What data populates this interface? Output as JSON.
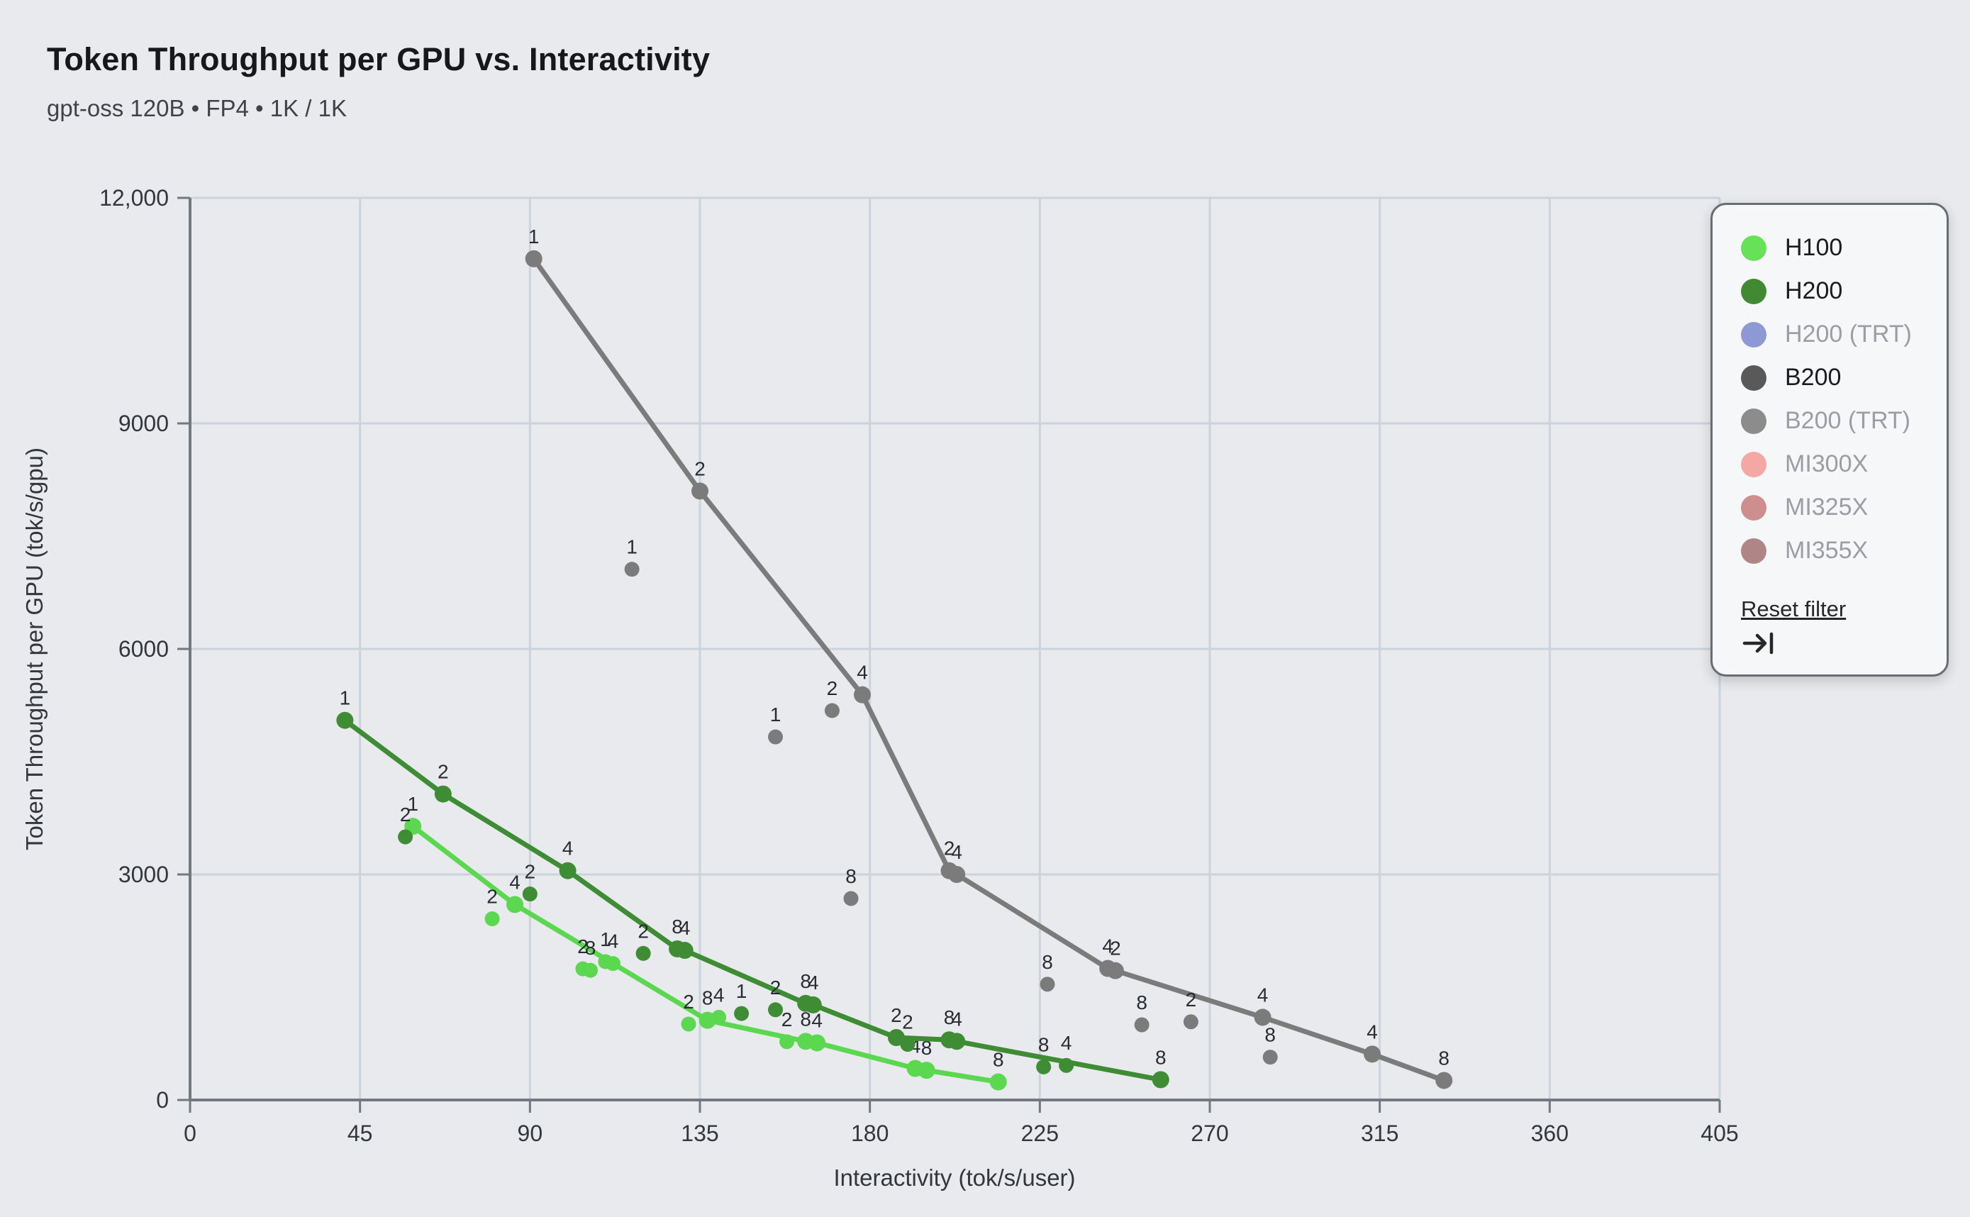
{
  "header": {
    "title": "Token Throughput per GPU vs. Interactivity",
    "subtitle": "gpt-oss 120B • FP4 • 1K / 1K"
  },
  "chart_data": {
    "type": "scatter",
    "title": "Token Throughput per GPU vs. Interactivity",
    "subtitle": "gpt-oss 120B • FP4 • 1K / 1K",
    "xlabel": "Interactivity (tok/s/user)",
    "ylabel": "Token Throughput per GPU (tok/s/gpu)",
    "xlim": [
      0,
      405
    ],
    "ylim": [
      0,
      12000
    ],
    "x_ticks": [
      0,
      45,
      90,
      135,
      180,
      225,
      270,
      315,
      360,
      405
    ],
    "y_ticks": [
      {
        "value": 0,
        "label": "0"
      },
      {
        "value": 3000,
        "label": "3000"
      },
      {
        "value": 6000,
        "label": "6000"
      },
      {
        "value": 9000,
        "label": "9000"
      },
      {
        "value": 12000,
        "label": "12,000"
      }
    ],
    "grid": true,
    "point_labels": "parallelism (1 / 2 / 4 / 8)",
    "series": [
      {
        "name": "H100",
        "color": "#5bd84f",
        "line": [
          [
            59,
            3640,
            "1"
          ],
          [
            86,
            2600,
            "4"
          ],
          [
            137,
            1060,
            "8"
          ],
          [
            163,
            780,
            "8"
          ],
          [
            166,
            760,
            "4"
          ],
          [
            192,
            420,
            "4"
          ],
          [
            195,
            395,
            "8"
          ],
          [
            214,
            240,
            "8"
          ]
        ],
        "scatter": [
          [
            80,
            2410,
            "2"
          ],
          [
            104,
            1745,
            "2"
          ],
          [
            106,
            1725,
            "8"
          ],
          [
            110,
            1840,
            "1"
          ],
          [
            112,
            1815,
            "4"
          ],
          [
            132,
            1010,
            "2"
          ],
          [
            140,
            1100,
            "4"
          ],
          [
            158,
            775,
            "2"
          ]
        ]
      },
      {
        "name": "H200",
        "color": "#3e8c33",
        "line": [
          [
            41,
            5050,
            "1"
          ],
          [
            67,
            4070,
            "2"
          ],
          [
            100,
            3050,
            "4"
          ],
          [
            129,
            2010,
            "8"
          ],
          [
            131,
            1990,
            "4"
          ],
          [
            163,
            1285,
            "8"
          ],
          [
            165,
            1265,
            "4"
          ],
          [
            187,
            830,
            "2"
          ],
          [
            201,
            800,
            "8"
          ],
          [
            203,
            780,
            "4"
          ],
          [
            257,
            270,
            "8"
          ]
        ],
        "scatter": [
          [
            57,
            3500,
            "2"
          ],
          [
            90,
            2740,
            "2"
          ],
          [
            120,
            1950,
            "2"
          ],
          [
            146,
            1150,
            "1"
          ],
          [
            155,
            1200,
            "2"
          ],
          [
            190,
            740,
            "2"
          ],
          [
            226,
            440,
            "8"
          ],
          [
            232,
            460,
            "4"
          ]
        ]
      },
      {
        "name": "B200",
        "color": "#7b7b7b",
        "line": [
          [
            91,
            11190,
            "1"
          ],
          [
            135,
            8100,
            "2"
          ],
          [
            178,
            5390,
            "4"
          ],
          [
            201,
            3050,
            "2"
          ],
          [
            203,
            3000,
            "4"
          ],
          [
            243,
            1750,
            "4"
          ],
          [
            245,
            1720,
            "2"
          ],
          [
            284,
            1100,
            "4"
          ],
          [
            313,
            610,
            "4"
          ],
          [
            332,
            260,
            "8"
          ]
        ],
        "scatter": [
          [
            117,
            7060,
            "1"
          ],
          [
            155,
            4830,
            "1"
          ],
          [
            170,
            5180,
            "2"
          ],
          [
            175,
            2680,
            "8"
          ],
          [
            227,
            1540,
            "8"
          ],
          [
            252,
            1000,
            "8"
          ],
          [
            265,
            1040,
            "2"
          ],
          [
            286,
            570,
            "8"
          ]
        ]
      }
    ]
  },
  "legend": {
    "items": [
      {
        "label": "H100",
        "color": "#67e157",
        "active": true
      },
      {
        "label": "H200",
        "color": "#418a33",
        "active": true
      },
      {
        "label": "H200 (TRT)",
        "color": "#8d99d4",
        "active": false
      },
      {
        "label": "B200",
        "color": "#595959",
        "active": true
      },
      {
        "label": "B200 (TRT)",
        "color": "#8c8c8c",
        "active": false
      },
      {
        "label": "MI300X",
        "color": "#f4a8a4",
        "active": false
      },
      {
        "label": "MI325X",
        "color": "#cf8e8e",
        "active": false
      },
      {
        "label": "MI355X",
        "color": "#b08585",
        "active": false
      }
    ],
    "reset_label": "Reset filter"
  },
  "style": {
    "background": "#e9eaed",
    "gridline": "#ccd3dd",
    "axis": "#73787e",
    "tick_text": "#33363c",
    "point_label_text": "#292c30"
  }
}
